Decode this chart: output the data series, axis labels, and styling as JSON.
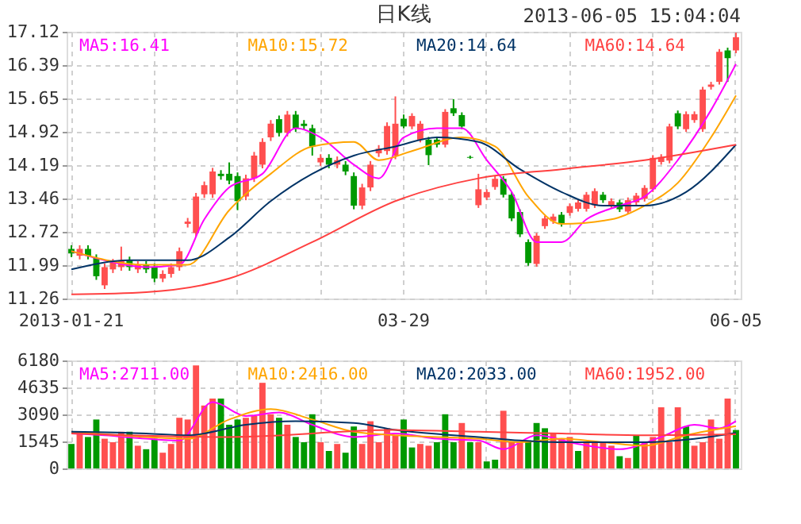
{
  "chart_data": [
    {
      "type": "candlestick",
      "title": "日K线",
      "annotations": [
        "2013-06-05 15:04:04"
      ],
      "categories": [
        "2013-01-21",
        null,
        null,
        null,
        null,
        null,
        null,
        null,
        null,
        null,
        null,
        null,
        null,
        null,
        null,
        null,
        null,
        null,
        null,
        null,
        null,
        null,
        null,
        null,
        null,
        null,
        null,
        null,
        null,
        null,
        null,
        null,
        null,
        null,
        null,
        null,
        null,
        null,
        null,
        null,
        "03-29",
        null,
        null,
        null,
        null,
        null,
        null,
        null,
        null,
        null,
        null,
        null,
        null,
        null,
        null,
        null,
        null,
        null,
        null,
        null,
        null,
        null,
        null,
        null,
        null,
        null,
        null,
        null,
        null,
        null,
        null,
        null,
        null,
        null,
        null,
        null,
        null,
        null,
        null,
        null,
        "06-05"
      ],
      "ohlc": [
        [
          12.35,
          12.43,
          12.17,
          12.25
        ],
        [
          12.2,
          12.43,
          12.12,
          12.35
        ],
        [
          12.35,
          12.43,
          12.12,
          12.2
        ],
        [
          12.15,
          12.23,
          11.67,
          11.75
        ],
        [
          11.55,
          12.03,
          11.47,
          11.95
        ],
        [
          11.9,
          12.13,
          11.82,
          12.05
        ],
        [
          11.95,
          12.4,
          11.87,
          12.1
        ],
        [
          12.1,
          12.18,
          11.87,
          11.95
        ],
        [
          11.9,
          12.08,
          11.82,
          12.0
        ],
        [
          12.0,
          12.08,
          11.82,
          11.9
        ],
        [
          11.95,
          12.03,
          11.62,
          11.7
        ],
        [
          11.7,
          11.88,
          11.62,
          11.8
        ],
        [
          11.8,
          12.03,
          11.72,
          11.95
        ],
        [
          11.95,
          12.38,
          11.87,
          12.3
        ],
        [
          12.9,
          13.03,
          12.82,
          12.95
        ],
        [
          12.7,
          13.58,
          12.62,
          13.5
        ],
        [
          13.55,
          13.83,
          13.47,
          13.75
        ],
        [
          13.55,
          14.13,
          13.47,
          14.05
        ],
        [
          14.0,
          14.08,
          13.87,
          13.95
        ],
        [
          14.0,
          14.25,
          13.77,
          13.85
        ],
        [
          13.95,
          14.03,
          13.2,
          13.4
        ],
        [
          13.5,
          13.98,
          13.42,
          13.9
        ],
        [
          13.9,
          14.48,
          13.82,
          14.4
        ],
        [
          14.2,
          14.78,
          14.12,
          14.7
        ],
        [
          14.8,
          15.18,
          14.72,
          15.1
        ],
        [
          15.2,
          15.28,
          14.82,
          14.9
        ],
        [
          14.9,
          15.38,
          14.82,
          15.3
        ],
        [
          15.3,
          15.38,
          14.92,
          15.0
        ],
        [
          15.1,
          15.18,
          14.97,
          15.05
        ],
        [
          15.0,
          15.08,
          14.4,
          14.6
        ],
        [
          14.25,
          14.43,
          14.17,
          14.35
        ],
        [
          14.35,
          14.43,
          14.12,
          14.2
        ],
        [
          14.2,
          14.38,
          14.12,
          14.3
        ],
        [
          14.2,
          14.28,
          13.97,
          14.05
        ],
        [
          13.95,
          14.03,
          13.22,
          13.3
        ],
        [
          13.3,
          13.78,
          13.22,
          13.7
        ],
        [
          13.7,
          14.28,
          13.62,
          14.2
        ],
        [
          14.45,
          14.63,
          14.37,
          14.55
        ],
        [
          14.5,
          15.13,
          14.42,
          15.05
        ],
        [
          14.4,
          15.7,
          14.32,
          15.1
        ],
        [
          15.21,
          15.3,
          15.0,
          15.04
        ],
        [
          15.04,
          15.33,
          14.98,
          15.27
        ],
        [
          14.75,
          15.16,
          14.69,
          15.1
        ],
        [
          14.75,
          14.81,
          14.19,
          14.41
        ],
        [
          14.75,
          14.81,
          14.58,
          14.64
        ],
        [
          14.64,
          15.42,
          14.58,
          15.36
        ],
        [
          15.44,
          15.64,
          15.27,
          15.33
        ],
        [
          15.29,
          15.35,
          14.98,
          15.04
        ],
        [
          14.37,
          14.4,
          14.33,
          14.35
        ],
        [
          13.31,
          14.0,
          13.25,
          13.66
        ],
        [
          13.48,
          13.66,
          13.42,
          13.6
        ],
        [
          13.71,
          13.95,
          13.65,
          13.89
        ],
        [
          13.89,
          13.95,
          13.48,
          13.54
        ],
        [
          13.54,
          13.6,
          12.96,
          13.02
        ],
        [
          13.16,
          13.22,
          12.61,
          12.67
        ],
        [
          12.5,
          12.56,
          11.98,
          12.04
        ],
        [
          12.02,
          12.7,
          11.96,
          12.64
        ],
        [
          12.85,
          13.08,
          12.79,
          13.02
        ],
        [
          12.96,
          13.12,
          12.9,
          13.06
        ],
        [
          13.1,
          13.16,
          12.84,
          12.9
        ],
        [
          13.14,
          13.35,
          13.08,
          13.29
        ],
        [
          13.23,
          13.43,
          13.17,
          13.37
        ],
        [
          13.23,
          13.6,
          13.17,
          13.54
        ],
        [
          13.31,
          13.68,
          13.25,
          13.62
        ],
        [
          13.54,
          13.6,
          13.36,
          13.42
        ],
        [
          13.31,
          13.46,
          13.25,
          13.4
        ],
        [
          13.37,
          13.43,
          13.16,
          13.22
        ],
        [
          13.17,
          13.48,
          13.11,
          13.42
        ],
        [
          13.37,
          13.58,
          13.31,
          13.52
        ],
        [
          13.45,
          13.75,
          13.39,
          13.69
        ],
        [
          13.66,
          14.41,
          13.6,
          14.35
        ],
        [
          14.26,
          14.43,
          14.2,
          14.37
        ],
        [
          14.29,
          15.1,
          14.23,
          15.04
        ],
        [
          15.33,
          15.39,
          14.98,
          15.04
        ],
        [
          14.98,
          15.37,
          14.92,
          15.31
        ],
        [
          15.18,
          15.37,
          15.12,
          15.31
        ],
        [
          14.98,
          15.91,
          14.92,
          15.85
        ],
        [
          15.91,
          16.02,
          15.85,
          15.96
        ],
        [
          16.02,
          16.74,
          15.96,
          16.68
        ],
        [
          16.71,
          16.77,
          16.02,
          16.54
        ],
        [
          16.71,
          17.1,
          16.65,
          17.0
        ]
      ],
      "colors": [
        "#009900",
        "#ff4f4f",
        "#009900",
        "#009900",
        "#ff4f4f",
        "#ff4f4f",
        "#ff4f4f",
        "#009900",
        "#ff4f4f",
        "#009900",
        "#009900",
        "#ff4f4f",
        "#ff4f4f",
        "#ff4f4f",
        "#ff4f4f",
        "#ff4f4f",
        "#ff4f4f",
        "#ff4f4f",
        "#009900",
        "#009900",
        "#009900",
        "#ff4f4f",
        "#ff4f4f",
        "#ff4f4f",
        "#ff4f4f",
        "#009900",
        "#ff4f4f",
        "#009900",
        "#009900",
        "#009900",
        "#ff4f4f",
        "#009900",
        "#ff4f4f",
        "#009900",
        "#009900",
        "#ff4f4f",
        "#ff4f4f",
        "#ff4f4f",
        "#ff4f4f",
        "#ff4f4f",
        "#009900",
        "#ff4f4f",
        "#ff4f4f",
        "#009900",
        "#009900",
        "#ff4f4f",
        "#009900",
        "#009900",
        "#009900",
        "#ff4f4f",
        "#ff4f4f",
        "#ff4f4f",
        "#009900",
        "#009900",
        "#009900",
        "#009900",
        "#ff4f4f",
        "#ff4f4f",
        "#ff4f4f",
        "#009900",
        "#ff4f4f",
        "#ff4f4f",
        "#ff4f4f",
        "#ff4f4f",
        "#009900",
        "#ff4f4f",
        "#009900",
        "#ff4f4f",
        "#ff4f4f",
        "#ff4f4f",
        "#ff4f4f",
        "#ff4f4f",
        "#ff4f4f",
        "#009900",
        "#ff4f4f",
        "#ff4f4f",
        "#ff4f4f",
        "#ff4f4f",
        "#ff4f4f",
        "#009900",
        "#ff4f4f"
      ],
      "ylim": [
        11.26,
        17.12
      ],
      "yticks": [
        11.26,
        11.99,
        12.72,
        13.46,
        14.19,
        14.92,
        15.65,
        16.39,
        17.12
      ],
      "grid": true,
      "legend": "top",
      "series": [
        {
          "type": "line",
          "name": "MA5:16.41",
          "color": "#ff00ff",
          "values": [
            12.3,
            null,
            null,
            null,
            12.1,
            null,
            null,
            null,
            null,
            11.95,
            null,
            null,
            null,
            12.0,
            null,
            null,
            13.0,
            null,
            null,
            13.7,
            null,
            null,
            null,
            14.0,
            null,
            null,
            null,
            15.0,
            null,
            null,
            14.8,
            null,
            null,
            null,
            14.2,
            null,
            null,
            13.9,
            null,
            null,
            14.8,
            null,
            null,
            null,
            15.0,
            null,
            null,
            15.0,
            null,
            null,
            14.3,
            null,
            null,
            13.6,
            null,
            null,
            12.5,
            null,
            null,
            12.5,
            null,
            null,
            13.0,
            null,
            null,
            null,
            13.3,
            null,
            null,
            13.5,
            null,
            null,
            null,
            14.3,
            null,
            null,
            null,
            15.4,
            null,
            null,
            16.41
          ]
        },
        {
          "type": "line",
          "name": "MA10:15.72",
          "color": "#ffa500",
          "values": [
            12.3,
            null,
            null,
            null,
            null,
            null,
            null,
            null,
            null,
            12.0,
            null,
            null,
            null,
            null,
            12.0,
            null,
            null,
            null,
            null,
            13.2,
            null,
            null,
            null,
            null,
            14.0,
            null,
            null,
            null,
            null,
            14.6,
            null,
            null,
            null,
            null,
            14.7,
            null,
            null,
            14.3,
            null,
            null,
            null,
            14.5,
            null,
            null,
            null,
            null,
            null,
            14.8,
            null,
            null,
            null,
            14.6,
            null,
            null,
            null,
            13.5,
            null,
            null,
            null,
            12.9,
            null,
            null,
            null,
            null,
            null,
            13.0,
            null,
            null,
            null,
            13.3,
            null,
            null,
            null,
            13.8,
            null,
            null,
            null,
            14.8,
            null,
            null,
            15.72
          ]
        },
        {
          "type": "line",
          "name": "MA20:14.64",
          "color": "#003366",
          "values": [
            11.9,
            null,
            null,
            null,
            null,
            null,
            null,
            12.1,
            null,
            null,
            null,
            null,
            null,
            null,
            12.1,
            null,
            null,
            null,
            null,
            12.6,
            null,
            null,
            null,
            null,
            13.4,
            null,
            null,
            null,
            null,
            14.0,
            null,
            null,
            null,
            null,
            14.4,
            null,
            null,
            null,
            null,
            14.6,
            null,
            null,
            null,
            null,
            14.8,
            null,
            null,
            null,
            null,
            14.7,
            null,
            null,
            null,
            null,
            14.1,
            null,
            null,
            null,
            null,
            13.6,
            null,
            null,
            null,
            null,
            13.3,
            null,
            null,
            null,
            null,
            13.3,
            null,
            null,
            null,
            null,
            13.6,
            null,
            null,
            null,
            null,
            null,
            14.64
          ]
        },
        {
          "type": "line",
          "name": "MA60:14.64",
          "color": "#ff4040",
          "values": [
            11.35,
            null,
            null,
            null,
            null,
            null,
            null,
            null,
            null,
            11.4,
            null,
            null,
            null,
            null,
            null,
            null,
            null,
            null,
            null,
            11.7,
            null,
            null,
            null,
            null,
            null,
            null,
            null,
            null,
            null,
            12.5,
            null,
            null,
            null,
            null,
            null,
            null,
            null,
            null,
            null,
            13.4,
            null,
            null,
            null,
            null,
            null,
            null,
            null,
            null,
            null,
            13.9,
            null,
            null,
            null,
            null,
            null,
            null,
            null,
            null,
            null,
            14.1,
            null,
            null,
            null,
            null,
            null,
            null,
            null,
            null,
            null,
            14.3,
            null,
            null,
            null,
            null,
            null,
            null,
            null,
            null,
            null,
            null,
            14.64
          ]
        }
      ]
    },
    {
      "type": "bar",
      "tick_labels": "y",
      "categories": [
        null,
        null,
        null,
        null,
        null,
        null,
        null,
        null,
        null,
        null,
        null,
        null,
        null,
        null,
        null,
        null,
        null,
        null,
        null,
        null,
        null,
        null,
        null,
        null,
        null,
        null,
        null,
        null,
        null,
        null,
        null,
        null,
        null,
        null,
        null,
        null,
        null,
        null,
        null,
        null,
        null,
        null,
        null,
        null,
        null,
        null,
        null,
        null,
        null,
        null,
        null,
        null,
        null,
        null,
        null,
        null,
        null,
        null,
        null,
        null,
        null,
        null,
        null,
        null,
        null,
        null,
        null,
        null,
        null,
        null,
        null,
        null,
        null,
        null,
        null,
        null,
        null,
        null,
        null,
        null,
        null
      ],
      "ylim": [
        0,
        6180
      ],
      "yticks": [
        0,
        1545,
        3090,
        4635,
        6180
      ],
      "grid": true,
      "legend": "top",
      "series": [
        {
          "type": "bar",
          "values": [
            1400,
            2100,
            1800,
            2800,
            1700,
            1500,
            2100,
            2100,
            1300,
            1100,
            1700,
            900,
            1400,
            2900,
            2800,
            5900,
            3600,
            4000,
            4000,
            2500,
            2800,
            2900,
            3000,
            4900,
            3100,
            2900,
            2500,
            1800,
            1500,
            3100,
            1500,
            1000,
            1400,
            900,
            2400,
            1400,
            2700,
            1500,
            2300,
            1900,
            2800,
            1200,
            1400,
            1300,
            1500,
            3100,
            1500,
            2600,
            1500,
            1500,
            400,
            500,
            3300,
            1500,
            1500,
            1600,
            2600,
            2300,
            2000,
            1700,
            1800,
            1000,
            1500,
            1500,
            1500,
            1300,
            700,
            600,
            1900,
            1500,
            1800,
            3500,
            1500,
            3500,
            2400,
            1300,
            1500,
            2800,
            1700,
            4000,
            2200
          ],
          "colors": [
            "#009900",
            "#ff4f4f",
            "#009900",
            "#009900",
            "#ff4f4f",
            "#ff4f4f",
            "#ff4f4f",
            "#009900",
            "#ff4f4f",
            "#009900",
            "#009900",
            "#ff4f4f",
            "#ff4f4f",
            "#ff4f4f",
            "#ff4f4f",
            "#ff4f4f",
            "#ff4f4f",
            "#ff4f4f",
            "#009900",
            "#009900",
            "#009900",
            "#ff4f4f",
            "#ff4f4f",
            "#ff4f4f",
            "#ff4f4f",
            "#009900",
            "#ff4f4f",
            "#009900",
            "#009900",
            "#009900",
            "#ff4f4f",
            "#009900",
            "#ff4f4f",
            "#009900",
            "#009900",
            "#ff4f4f",
            "#ff4f4f",
            "#ff4f4f",
            "#ff4f4f",
            "#ff4f4f",
            "#009900",
            "#009900",
            "#ff4f4f",
            "#ff4f4f",
            "#009900",
            "#009900",
            "#009900",
            "#ff4f4f",
            "#009900",
            "#ff4f4f",
            "#009900",
            "#009900",
            "#ff4f4f",
            "#ff4f4f",
            "#ff4f4f",
            "#009900",
            "#009900",
            "#009900",
            "#ff4f4f",
            "#ff4f4f",
            "#ff4f4f",
            "#009900",
            "#ff4f4f",
            "#ff4f4f",
            "#ff4f4f",
            "#ff4f4f",
            "#009900",
            "#ff4f4f",
            "#009900",
            "#ff4f4f",
            "#ff4f4f",
            "#ff4f4f",
            "#ff4f4f",
            "#ff4f4f",
            "#009900",
            "#ff4f4f",
            "#ff4f4f",
            "#ff4f4f",
            "#ff4f4f",
            "#ff4f4f",
            "#009900"
          ]
        },
        {
          "type": "line",
          "name": "MA5:2711.00",
          "color": "#ff00ff",
          "values": [
            2000,
            null,
            null,
            null,
            1900,
            null,
            null,
            null,
            null,
            1700,
            null,
            null,
            null,
            1600,
            null,
            null,
            null,
            3800,
            null,
            null,
            null,
            3000,
            null,
            null,
            null,
            3200,
            null,
            null,
            null,
            2500,
            null,
            null,
            null,
            null,
            1800,
            null,
            null,
            null,
            null,
            2000,
            null,
            null,
            null,
            null,
            1700,
            null,
            null,
            null,
            null,
            1600,
            null,
            null,
            1100,
            null,
            null,
            null,
            1900,
            null,
            null,
            null,
            null,
            1400,
            null,
            null,
            null,
            null,
            1100,
            null,
            null,
            null,
            null,
            1800,
            null,
            null,
            null,
            2500,
            null,
            null,
            2300,
            null,
            2711
          ]
        },
        {
          "type": "line",
          "name": "MA10:2416.00",
          "color": "#ffa500",
          "values": [
            2100,
            null,
            null,
            null,
            null,
            null,
            null,
            null,
            null,
            1800,
            null,
            null,
            null,
            null,
            1700,
            null,
            null,
            null,
            null,
            2800,
            null,
            null,
            null,
            null,
            3400,
            null,
            null,
            null,
            null,
            2800,
            null,
            null,
            null,
            null,
            2100,
            null,
            null,
            null,
            null,
            1900,
            null,
            null,
            null,
            null,
            null,
            null,
            null,
            null,
            null,
            1700,
            null,
            null,
            null,
            null,
            1500,
            null,
            null,
            null,
            null,
            1700,
            null,
            null,
            null,
            null,
            1500,
            null,
            null,
            null,
            null,
            1300,
            null,
            null,
            null,
            null,
            1900,
            null,
            null,
            null,
            null,
            null,
            2416
          ]
        },
        {
          "type": "line",
          "name": "MA20:2033.00",
          "color": "#003366",
          "values": [
            2100,
            null,
            null,
            null,
            null,
            null,
            null,
            null,
            null,
            2000,
            null,
            null,
            null,
            null,
            1900,
            null,
            null,
            null,
            null,
            null,
            null,
            2500,
            null,
            null,
            null,
            null,
            null,
            2700,
            null,
            null,
            null,
            null,
            null,
            null,
            2600,
            null,
            null,
            null,
            null,
            2200,
            null,
            null,
            null,
            null,
            null,
            null,
            null,
            null,
            null,
            1800,
            null,
            null,
            null,
            null,
            1600,
            null,
            null,
            null,
            null,
            1500,
            null,
            null,
            null,
            null,
            null,
            null,
            null,
            null,
            null,
            1500,
            null,
            null,
            null,
            null,
            null,
            null,
            null,
            null,
            null,
            null,
            2033
          ]
        },
        {
          "type": "line",
          "name": "MA60:1952.00",
          "color": "#ff4040",
          "values": [
            2000,
            null,
            null,
            null,
            null,
            null,
            null,
            null,
            null,
            null,
            null,
            null,
            null,
            null,
            null,
            null,
            null,
            null,
            null,
            1800,
            null,
            null,
            null,
            null,
            null,
            null,
            null,
            null,
            null,
            null,
            null,
            null,
            null,
            null,
            null,
            null,
            null,
            null,
            null,
            2200,
            null,
            null,
            null,
            null,
            null,
            null,
            null,
            null,
            null,
            2100,
            null,
            null,
            null,
            null,
            null,
            null,
            null,
            null,
            null,
            2000,
            null,
            null,
            null,
            null,
            null,
            null,
            null,
            null,
            null,
            1900,
            null,
            null,
            null,
            null,
            null,
            null,
            null,
            null,
            null,
            null,
            1952
          ]
        }
      ]
    }
  ]
}
